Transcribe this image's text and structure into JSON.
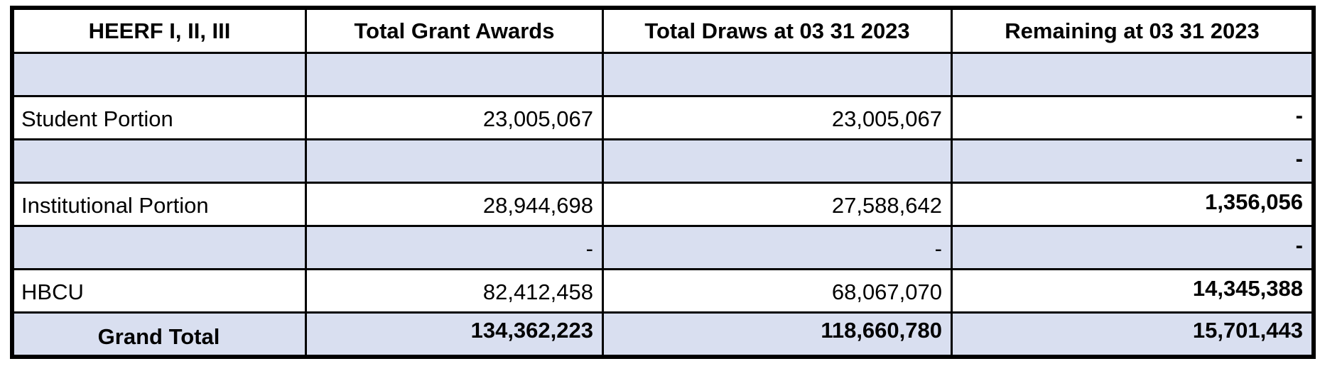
{
  "table": {
    "headers": [
      "HEERF I, II, III",
      "Total Grant Awards",
      "Total Draws at 03 31 2023",
      "Remaining at 03 31 2023"
    ],
    "rows": [
      {
        "label": "",
        "grant": "",
        "draws": "",
        "remaining": "",
        "shaded": true
      },
      {
        "label": "Student Portion",
        "grant": "23,005,067",
        "draws": "23,005,067",
        "remaining": "-",
        "shaded": false
      },
      {
        "label": "",
        "grant": "",
        "draws": "",
        "remaining": "-",
        "shaded": true
      },
      {
        "label": "Institutional Portion",
        "grant": "28,944,698",
        "draws": "27,588,642",
        "remaining": "1,356,056",
        "shaded": false
      },
      {
        "label": "",
        "grant": "-",
        "draws": "-",
        "remaining": "-",
        "shaded": true
      },
      {
        "label": "HBCU",
        "grant": "82,412,458",
        "draws": "68,067,070",
        "remaining": "14,345,388",
        "shaded": false
      }
    ],
    "total": {
      "label": "Grand Total",
      "grant": "134,362,223",
      "draws": "118,660,780",
      "remaining": "15,701,443"
    },
    "colors": {
      "shaded_row": "#d9dff0",
      "border": "#000000"
    }
  }
}
